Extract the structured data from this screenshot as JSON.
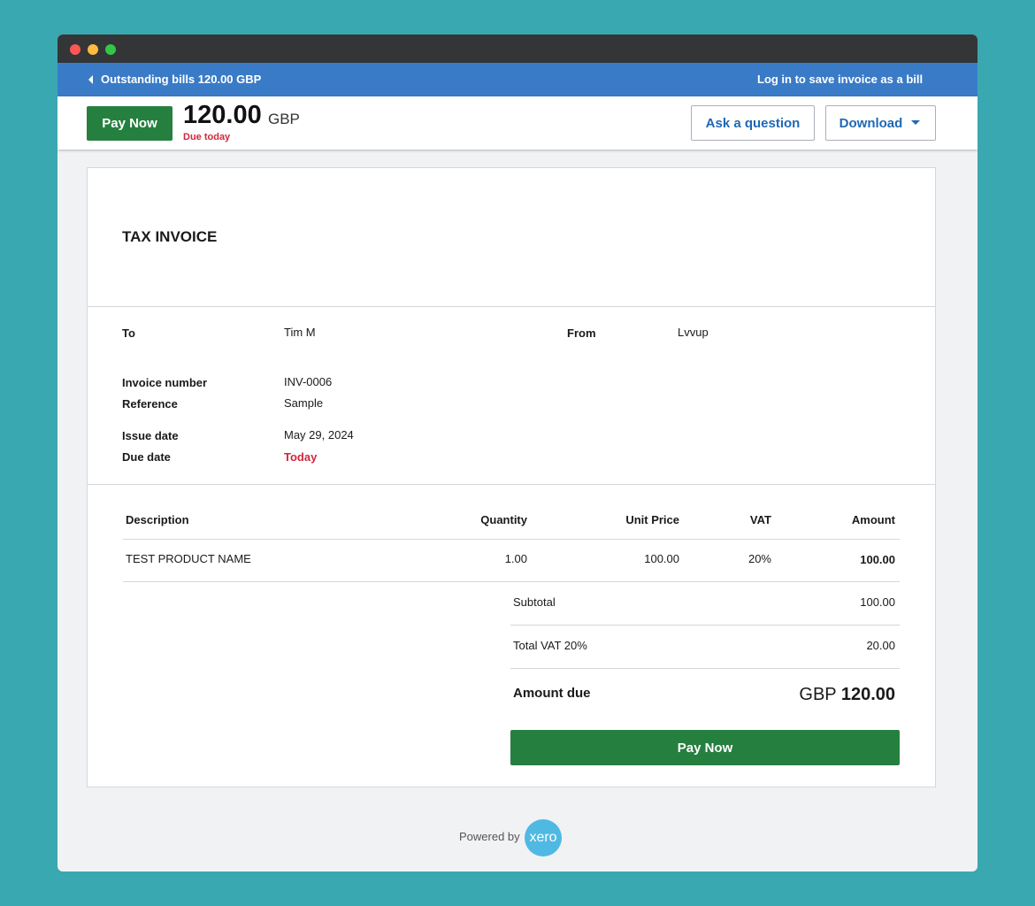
{
  "nav": {
    "back": "Outstanding bills 120.00 GBP",
    "login": "Log in to save invoice as a bill"
  },
  "header": {
    "pay_button": "Pay Now",
    "amount": "120.00",
    "currency": "GBP",
    "due": "Due today",
    "ask_button": "Ask a question",
    "download_button": "Download"
  },
  "invoice": {
    "title": "TAX INVOICE",
    "to_label": "To",
    "to_value": "Tim M",
    "from_label": "From",
    "from_value": "Lvvup",
    "details": [
      [
        "Invoice number",
        "INV-0006"
      ],
      [
        "Reference",
        "Sample"
      ],
      [
        "Issue date",
        "May 29, 2024"
      ],
      [
        "Due date",
        "Today"
      ]
    ],
    "table": {
      "columns": [
        "Description",
        "Quantity",
        "Unit Price",
        "VAT",
        "Amount"
      ],
      "rows": [
        [
          "TEST PRODUCT NAME",
          "1.00",
          "100.00",
          "20%",
          "100.00"
        ]
      ]
    },
    "totals": [
      [
        "Subtotal",
        "100.00"
      ],
      [
        "Total VAT 20%",
        "20.00"
      ]
    ],
    "amount_due": {
      "label": "Amount due",
      "currency": "GBP",
      "value": "120.00"
    },
    "pay_button": "Pay Now"
  },
  "footer": {
    "powered_by": "Powered by",
    "logo": "xero"
  }
}
